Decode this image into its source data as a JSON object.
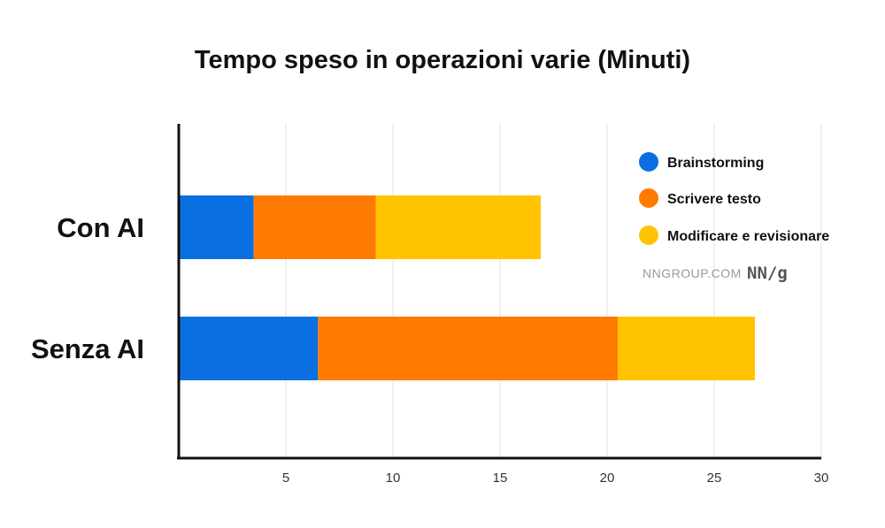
{
  "chart_data": {
    "type": "bar",
    "orientation": "horizontal",
    "stacked": true,
    "title": "Tempo speso in operazioni varie (Minuti)",
    "categories": [
      "Con AI",
      "Senza AI"
    ],
    "series": [
      {
        "name": "Brainstorming",
        "color": "#0a6fe0",
        "values": [
          3.5,
          6.5
        ]
      },
      {
        "name": "Scrivere testo",
        "color": "#ff7a00",
        "values": [
          5.7,
          14
        ]
      },
      {
        "name": "Modificare e revisionare",
        "color": "#ffc300",
        "values": [
          7.7,
          6.4
        ]
      }
    ],
    "xlim": [
      0,
      30
    ],
    "xticks": [
      5,
      10,
      15,
      20,
      25,
      30
    ],
    "grid": "vertical",
    "legend": "top-right",
    "xlabel": "",
    "ylabel": ""
  },
  "source": {
    "site": "NNGROUP.COM",
    "brand": "NN/g"
  }
}
